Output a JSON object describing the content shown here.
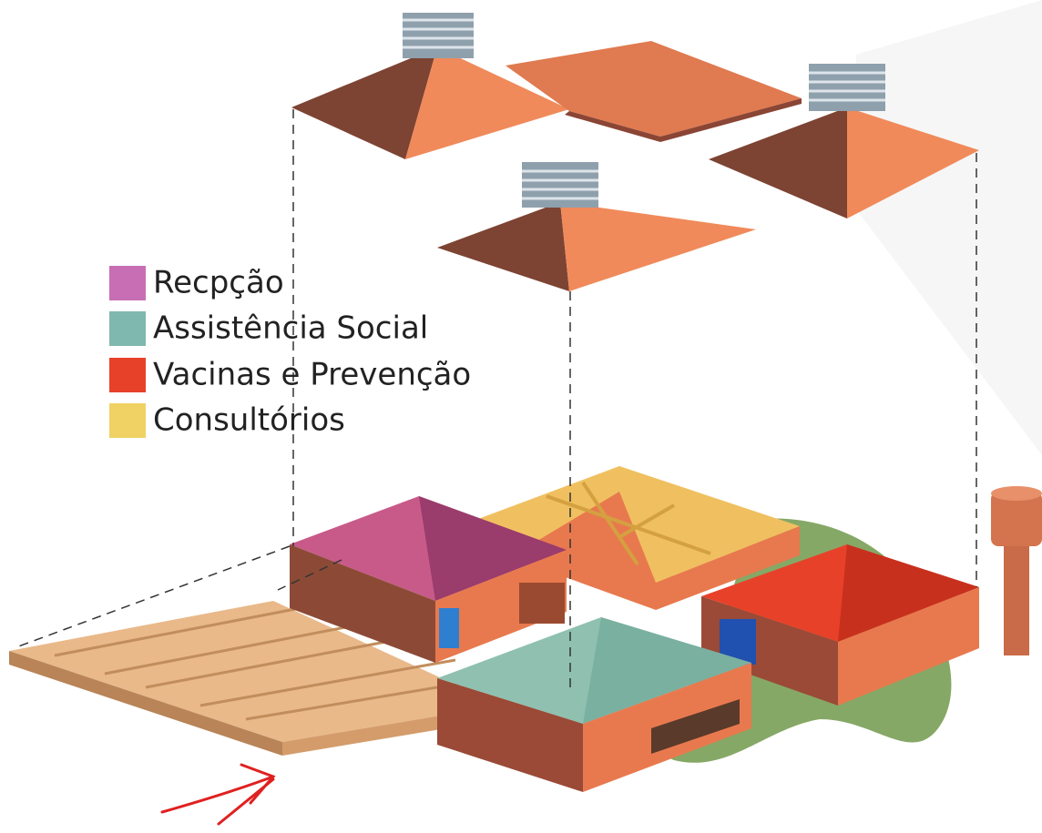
{
  "legend": {
    "items": [
      {
        "label": "Recpção",
        "color": "#c86eb4"
      },
      {
        "label": "Assistência Social",
        "color": "#7fb8ae"
      },
      {
        "label": "Vacinas e Prevenção",
        "color": "#e8412a"
      },
      {
        "label": "Consultórios",
        "color": "#f0d264"
      }
    ]
  }
}
